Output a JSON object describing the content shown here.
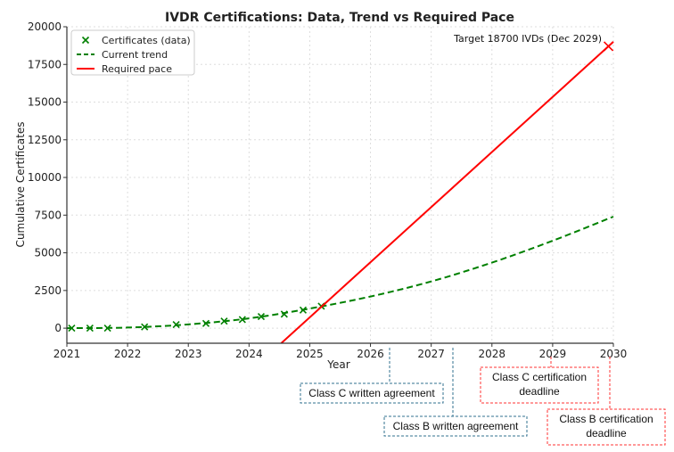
{
  "chart_data": {
    "type": "line",
    "title": "IVDR Certifications: Data, Trend vs Required Pace",
    "xlabel": "Year",
    "ylabel": "Cumulative Certificates",
    "xlim": [
      2021,
      2030
    ],
    "ylim": [
      -1000,
      20000
    ],
    "xticks": [
      "2021",
      "2022",
      "2023",
      "2024",
      "2025",
      "2026",
      "2027",
      "2028",
      "2029",
      "2030"
    ],
    "yticks": [
      "0",
      "2500",
      "5000",
      "7500",
      "10000",
      "12500",
      "15000",
      "17500",
      "20000"
    ],
    "grid": true,
    "legend_position": "top-left",
    "series": [
      {
        "name": "Certificates (data)",
        "style": "markers-x",
        "color": "#008000",
        "x": [
          2021.08,
          2021.38,
          2021.67,
          2022.28,
          2022.8,
          2023.29,
          2023.59,
          2023.89,
          2024.2,
          2024.58,
          2024.89,
          2025.19
        ],
        "y": [
          0,
          0,
          0,
          80,
          240,
          310,
          470,
          570,
          770,
          930,
          1200,
          1460
        ]
      },
      {
        "name": "Current trend",
        "style": "dashed",
        "color": "#008000",
        "x": [
          2021,
          2022,
          2023,
          2024,
          2025,
          2026,
          2027,
          2028,
          2029,
          2030
        ],
        "y": [
          0,
          40,
          250,
          650,
          1300,
          2100,
          3100,
          4350,
          5800,
          7400
        ]
      },
      {
        "name": "Required pace",
        "style": "solid",
        "color": "#ff0000",
        "x": [
          2024.53,
          2030
        ],
        "y": [
          -1000,
          19000
        ]
      }
    ],
    "target": {
      "label": "Target 18700 IVDs (Dec 2029)",
      "x": 2029.92,
      "y": 18700,
      "color": "#ff0000"
    },
    "annotations": [
      {
        "text": [
          "Class C written agreement"
        ],
        "x": 2026.32,
        "color": "#31708f"
      },
      {
        "text": [
          "Class B written agreement"
        ],
        "x": 2027.36,
        "color": "#31708f"
      },
      {
        "text": [
          "Class C certification",
          "deadline"
        ],
        "x": 2029,
        "color": "#ff3333"
      },
      {
        "text": [
          "Class B certification",
          "deadline"
        ],
        "x": 2030,
        "color": "#ff3333"
      }
    ]
  }
}
